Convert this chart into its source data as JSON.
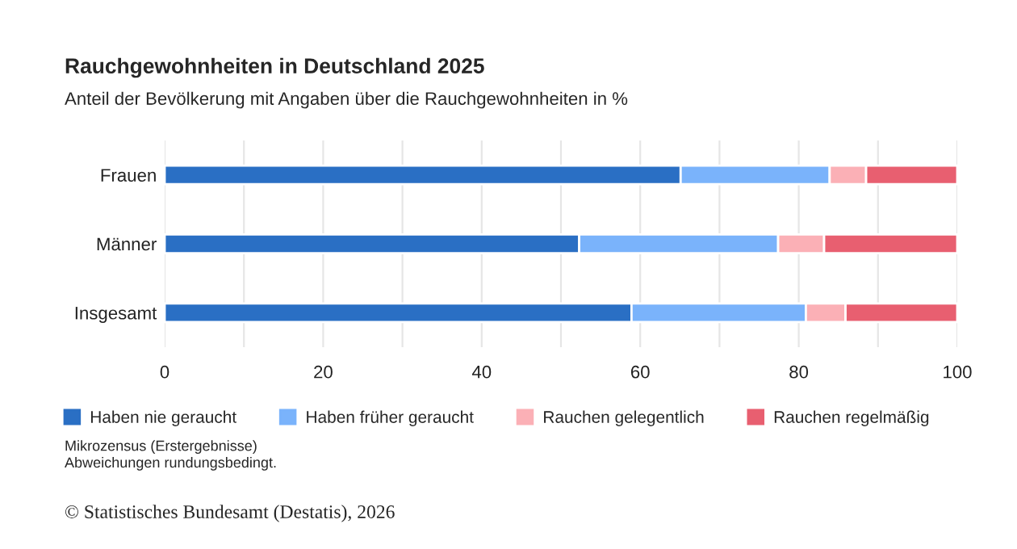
{
  "chart_data": {
    "type": "bar",
    "orientation": "horizontal",
    "stacked": true,
    "title": "Rauchgewohnheiten in Deutschland 2025",
    "subtitle": "Anteil der Bevölkerung mit Angaben über die Rauchgewohnheiten in %",
    "categories": [
      "Frauen",
      "Männer",
      "Insgesamt"
    ],
    "series": [
      {
        "name": "Haben nie geraucht",
        "color": "#2a6fc4",
        "values": [
          65.1,
          52.3,
          58.9
        ]
      },
      {
        "name": "Haben früher geraucht",
        "color": "#7ab3fb",
        "values": [
          18.8,
          25.1,
          22.0
        ]
      },
      {
        "name": "Rauchen gelegentlich",
        "color": "#fbb0b6",
        "values": [
          4.6,
          5.8,
          5.0
        ]
      },
      {
        "name": "Rauchen regelmäßig",
        "color": "#e85f70",
        "values": [
          11.5,
          16.8,
          14.1
        ]
      }
    ],
    "xlim": [
      0,
      100
    ],
    "xticks": [
      0,
      {
        "value": 10,
        "label": null
      },
      20,
      {
        "value": 30,
        "label": null
      },
      40,
      {
        "value": 50,
        "label": null
      },
      60,
      {
        "value": 70,
        "label": null
      },
      80,
      {
        "value": 90,
        "label": null
      },
      100
    ],
    "grid": "x",
    "legend": "bottom",
    "annotations": [
      "Mikrozensus (Erstergebnisse)\nAbweichungen rundungsbedingt.",
      "© Statistisches Bundesamt (Destatis), 2026"
    ]
  }
}
